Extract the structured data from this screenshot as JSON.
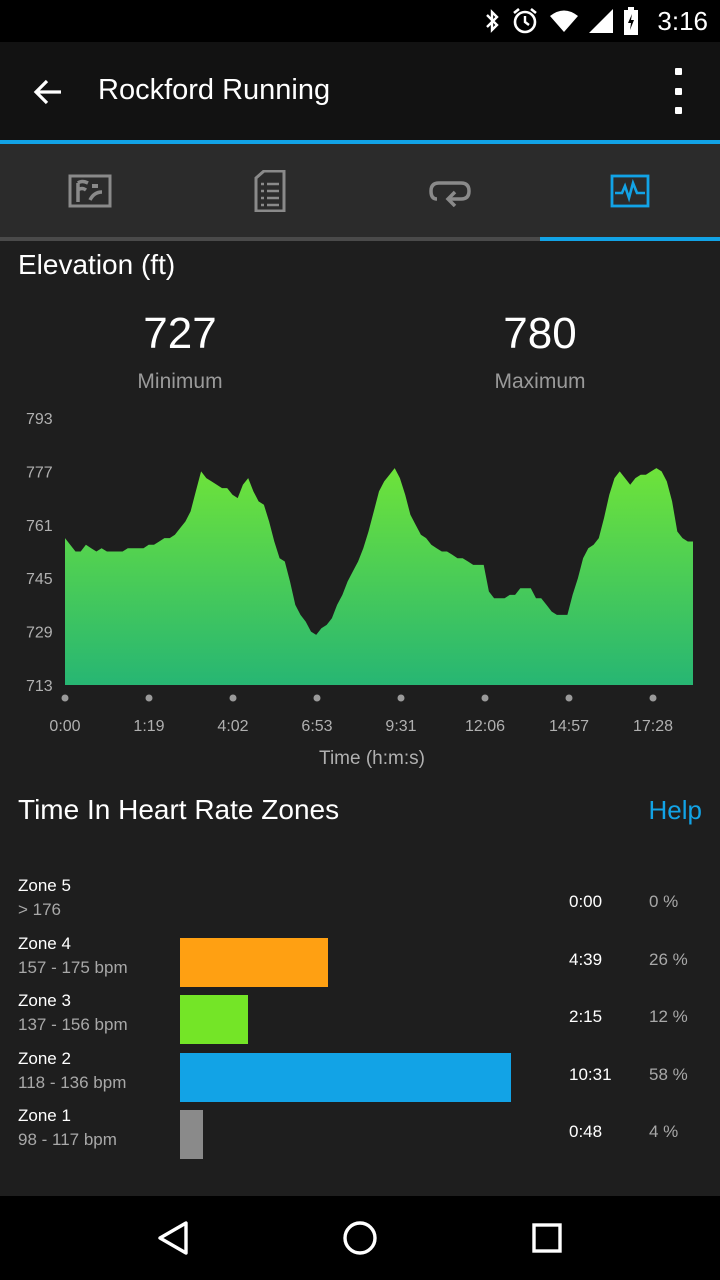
{
  "status_bar": {
    "time": "3:16"
  },
  "app_bar": {
    "title": "Rockford Running"
  },
  "colors": {
    "accent": "#12a3e6",
    "chart_top": "#6ee33a",
    "chart_bottom": "#27b673",
    "zone5": "#8a8a8a",
    "zone4": "#ffa012",
    "zone3": "#74e527",
    "zone2": "#12a3e6",
    "zone1": "#8a8a8a"
  },
  "tabs": [
    {
      "icon": "map-icon",
      "selected": false
    },
    {
      "icon": "details-icon",
      "selected": false
    },
    {
      "icon": "laps-icon",
      "selected": false
    },
    {
      "icon": "charts-icon",
      "selected": true
    }
  ],
  "elevation": {
    "title": "Elevation (ft)",
    "min_value": "727",
    "min_label": "Minimum",
    "max_value": "780",
    "max_label": "Maximum"
  },
  "chart_data": {
    "type": "area",
    "xlabel": "Time (h:m:s)",
    "ylabel": "",
    "y_ticks": [
      "793",
      "777",
      "761",
      "745",
      "729",
      "713"
    ],
    "ylim": [
      713,
      793
    ],
    "x_ticks": [
      "0:00",
      "1:19",
      "4:02",
      "6:53",
      "9:31",
      "12:06",
      "14:57",
      "17:28"
    ],
    "series": [
      {
        "values": [
          757,
          755,
          753,
          753,
          755,
          754,
          753,
          754,
          753,
          753,
          753,
          753,
          754,
          754,
          754,
          754,
          755,
          755,
          756,
          757,
          757,
          758,
          760,
          762,
          765,
          771,
          777,
          775,
          774,
          773,
          772,
          772,
          770,
          769,
          773,
          775,
          771,
          768,
          767,
          762,
          756,
          751,
          750,
          744,
          737,
          734,
          732,
          729,
          728,
          730,
          731,
          733,
          737,
          740,
          744,
          747,
          750,
          754,
          759,
          765,
          771,
          774,
          776,
          778,
          775,
          770,
          764,
          761,
          758,
          757,
          755,
          754,
          753,
          753,
          752,
          751,
          751,
          750,
          749,
          749,
          749,
          741,
          739,
          739,
          739,
          740,
          740,
          742,
          742,
          742,
          739,
          739,
          737,
          735,
          734,
          734,
          734,
          740,
          745,
          751,
          754,
          755,
          757,
          763,
          770,
          775,
          777,
          775,
          773,
          775,
          776,
          776,
          777,
          778,
          777,
          774,
          768,
          759,
          757,
          756,
          756
        ]
      }
    ]
  },
  "heart_rate": {
    "title": "Time In Heart Rate Zones",
    "help": "Help",
    "zones": [
      {
        "name": "Zone 5",
        "range": "> 176",
        "time": "0:00",
        "percent": "0 %",
        "fraction": 0.0
      },
      {
        "name": "Zone 4",
        "range": "157 - 175 bpm",
        "time": "4:39",
        "percent": "26 %",
        "fraction": 0.26
      },
      {
        "name": "Zone 3",
        "range": "137 - 156 bpm",
        "time": "2:15",
        "percent": "12 %",
        "fraction": 0.12
      },
      {
        "name": "Zone 2",
        "range": "118 - 136 bpm",
        "time": "10:31",
        "percent": "58 %",
        "fraction": 0.58
      },
      {
        "name": "Zone 1",
        "range": "98 - 117 bpm",
        "time": "0:48",
        "percent": "4 %",
        "fraction": 0.04
      }
    ]
  }
}
